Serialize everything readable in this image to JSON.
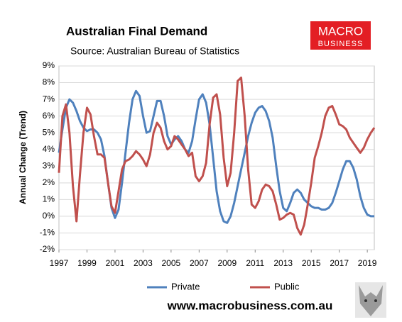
{
  "chart_data": {
    "type": "line",
    "title": "Australian Final Demand",
    "subtitle": "Source: Australian Bureau of Statistics",
    "y_label": "Annual Change (Trend)",
    "logo": [
      "MACRO",
      "BUSINESS"
    ],
    "footer": "www.macrobusiness.com.au",
    "x": [
      1997,
      1997.25,
      1997.5,
      1997.75,
      1998,
      1998.25,
      1998.5,
      1998.75,
      1999,
      1999.25,
      1999.5,
      1999.75,
      2000,
      2000.25,
      2000.5,
      2000.75,
      2001,
      2001.25,
      2001.5,
      2001.75,
      2002,
      2002.25,
      2002.5,
      2002.75,
      2003,
      2003.25,
      2003.5,
      2003.75,
      2004,
      2004.25,
      2004.5,
      2004.75,
      2005,
      2005.25,
      2005.5,
      2005.75,
      2006,
      2006.25,
      2006.5,
      2006.75,
      2007,
      2007.25,
      2007.5,
      2007.75,
      2008,
      2008.25,
      2008.5,
      2008.75,
      2009,
      2009.25,
      2009.5,
      2009.75,
      2010,
      2010.25,
      2010.5,
      2010.75,
      2011,
      2011.25,
      2011.5,
      2011.75,
      2012,
      2012.25,
      2012.5,
      2012.75,
      2013,
      2013.25,
      2013.5,
      2013.75,
      2014,
      2014.25,
      2014.5,
      2014.75,
      2015,
      2015.25,
      2015.5,
      2015.75,
      2016,
      2016.25,
      2016.5,
      2016.75,
      2017,
      2017.25,
      2017.5,
      2017.75,
      2018,
      2018.25,
      2018.5,
      2018.75,
      2019,
      2019.25,
      2019.5
    ],
    "series": [
      {
        "name": "Private",
        "color": "#4f81bd",
        "values": [
          3.8,
          5.2,
          6.5,
          7.0,
          6.8,
          6.3,
          5.7,
          5.3,
          5.1,
          5.2,
          5.2,
          5.0,
          4.6,
          3.6,
          2.0,
          0.5,
          -0.1,
          0.4,
          2.0,
          3.8,
          5.6,
          7.0,
          7.5,
          7.2,
          6.0,
          5.0,
          5.1,
          6.0,
          6.9,
          6.9,
          6.0,
          4.8,
          4.3,
          4.6,
          4.8,
          4.5,
          4.0,
          3.8,
          4.5,
          5.8,
          7.0,
          7.3,
          6.8,
          5.5,
          3.5,
          1.5,
          0.3,
          -0.3,
          -0.4,
          0.0,
          0.8,
          1.8,
          2.8,
          3.8,
          4.8,
          5.6,
          6.2,
          6.5,
          6.6,
          6.3,
          5.7,
          4.7,
          3.0,
          1.5,
          0.5,
          0.3,
          0.8,
          1.4,
          1.6,
          1.4,
          1.0,
          0.8,
          0.6,
          0.5,
          0.5,
          0.4,
          0.4,
          0.5,
          0.8,
          1.4,
          2.1,
          2.8,
          3.3,
          3.3,
          2.9,
          2.2,
          1.2,
          0.5,
          0.1,
          0.0,
          0.0
        ]
      },
      {
        "name": "Public",
        "color": "#c0504d",
        "values": [
          2.6,
          6.0,
          6.7,
          5.0,
          1.8,
          -0.3,
          2.5,
          5.0,
          6.5,
          6.1,
          4.8,
          3.7,
          3.7,
          3.5,
          2.0,
          0.6,
          0.2,
          1.5,
          2.8,
          3.3,
          3.4,
          3.6,
          3.9,
          3.7,
          3.4,
          3.0,
          3.7,
          5.0,
          5.6,
          5.3,
          4.5,
          4.0,
          4.2,
          4.8,
          4.6,
          4.3,
          4.0,
          3.6,
          3.8,
          2.4,
          2.1,
          2.4,
          3.2,
          5.5,
          7.1,
          7.3,
          6.1,
          3.5,
          1.8,
          2.6,
          5.0,
          8.1,
          8.3,
          6.0,
          2.8,
          0.7,
          0.5,
          0.9,
          1.6,
          1.9,
          1.8,
          1.5,
          0.7,
          -0.2,
          -0.1,
          0.1,
          0.2,
          0.1,
          -0.7,
          -1.1,
          -0.5,
          0.7,
          2.0,
          3.5,
          4.2,
          5.0,
          6.0,
          6.5,
          6.6,
          6.1,
          5.5,
          5.4,
          5.2,
          4.7,
          4.4,
          4.1,
          3.8,
          4.1,
          4.6,
          5.0,
          5.3
        ]
      }
    ],
    "xlim": [
      1997,
      2019.5
    ],
    "xticks": [
      1997,
      1999,
      2001,
      2003,
      2005,
      2007,
      2009,
      2011,
      2013,
      2015,
      2017,
      2019
    ],
    "ylim": [
      -2,
      9
    ],
    "yticks": [
      {
        "value": -2,
        "label": "-2%"
      },
      {
        "value": -1,
        "label": "-1%"
      },
      {
        "value": 0,
        "label": "0%"
      },
      {
        "value": 1,
        "label": "1%"
      },
      {
        "value": 2,
        "label": "2%"
      },
      {
        "value": 3,
        "label": "3%"
      },
      {
        "value": 4,
        "label": "4%"
      },
      {
        "value": 5,
        "label": "5%"
      },
      {
        "value": 6,
        "label": "6%"
      },
      {
        "value": 7,
        "label": "7%"
      },
      {
        "value": 8,
        "label": "8%"
      },
      {
        "value": 9,
        "label": "9%"
      }
    ],
    "grid": true,
    "legend": "bottom"
  }
}
